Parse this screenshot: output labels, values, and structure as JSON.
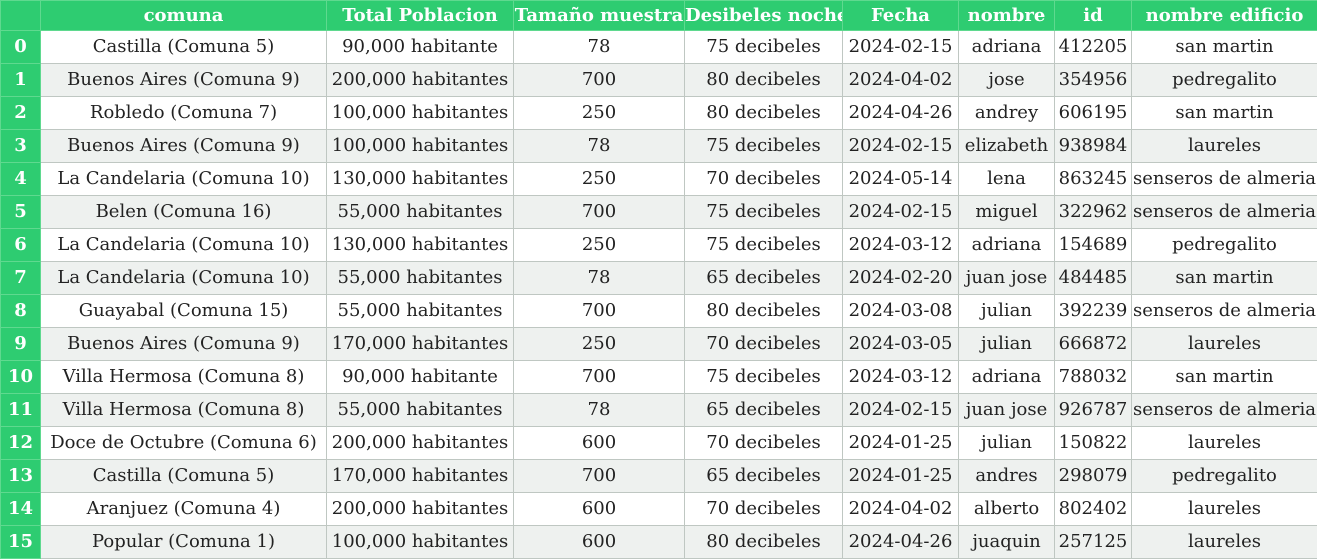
{
  "table": {
    "index_header": "",
    "columns": [
      "comuna",
      "Total Poblacion",
      "Tamaño muestra",
      "Desibeles noche",
      "Fecha",
      "nombre",
      "id",
      "nombre edificio"
    ],
    "rows": [
      {
        "index": "0",
        "cells": [
          "Castilla (Comuna 5)",
          "90,000 habitante",
          "78",
          "75 decibeles",
          "2024-02-15",
          "adriana",
          "412205",
          "san martin"
        ]
      },
      {
        "index": "1",
        "cells": [
          "Buenos Aires (Comuna 9)",
          "200,000 habitantes",
          "700",
          "80 decibeles",
          "2024-04-02",
          "jose",
          "354956",
          "pedregalito"
        ]
      },
      {
        "index": "2",
        "cells": [
          "Robledo (Comuna 7)",
          "100,000 habitantes",
          "250",
          "80 decibeles",
          "2024-04-26",
          "andrey",
          "606195",
          "san martin"
        ]
      },
      {
        "index": "3",
        "cells": [
          "Buenos Aires (Comuna 9)",
          "100,000 habitantes",
          "78",
          "75 decibeles",
          "2024-02-15",
          "elizabeth",
          "938984",
          "laureles"
        ]
      },
      {
        "index": "4",
        "cells": [
          "La Candelaria (Comuna 10)",
          "130,000 habitantes",
          "250",
          "70 decibeles",
          "2024-05-14",
          "lena",
          "863245",
          "senseros de almeria"
        ]
      },
      {
        "index": "5",
        "cells": [
          "Belen (Comuna 16)",
          "55,000 habitantes",
          "700",
          "75 decibeles",
          "2024-02-15",
          "miguel",
          "322962",
          "senseros de almeria"
        ]
      },
      {
        "index": "6",
        "cells": [
          "La Candelaria (Comuna 10)",
          "130,000 habitantes",
          "250",
          "75 decibeles",
          "2024-03-12",
          "adriana",
          "154689",
          "pedregalito"
        ]
      },
      {
        "index": "7",
        "cells": [
          "La Candelaria (Comuna 10)",
          "55,000 habitantes",
          "78",
          "65 decibeles",
          "2024-02-20",
          "juan jose",
          "484485",
          "san martin"
        ]
      },
      {
        "index": "8",
        "cells": [
          "Guayabal (Comuna 15)",
          "55,000 habitantes",
          "700",
          "80 decibeles",
          "2024-03-08",
          "julian",
          "392239",
          "senseros de almeria"
        ]
      },
      {
        "index": "9",
        "cells": [
          "Buenos Aires (Comuna 9)",
          "170,000 habitantes",
          "250",
          "70 decibeles",
          "2024-03-05",
          "julian",
          "666872",
          "laureles"
        ]
      },
      {
        "index": "10",
        "cells": [
          "Villa Hermosa (Comuna 8)",
          "90,000 habitante",
          "700",
          "75 decibeles",
          "2024-03-12",
          "adriana",
          "788032",
          "san martin"
        ]
      },
      {
        "index": "11",
        "cells": [
          "Villa Hermosa (Comuna 8)",
          "55,000 habitantes",
          "78",
          "65 decibeles",
          "2024-02-15",
          "juan jose",
          "926787",
          "senseros de almeria"
        ]
      },
      {
        "index": "12",
        "cells": [
          "Doce de Octubre (Comuna 6)",
          "200,000 habitantes",
          "600",
          "70 decibeles",
          "2024-01-25",
          "julian",
          "150822",
          "laureles"
        ]
      },
      {
        "index": "13",
        "cells": [
          "Castilla (Comuna 5)",
          "170,000 habitantes",
          "700",
          "65 decibeles",
          "2024-01-25",
          "andres",
          "298079",
          "pedregalito"
        ]
      },
      {
        "index": "14",
        "cells": [
          "Aranjuez (Comuna 4)",
          "200,000 habitantes",
          "600",
          "70 decibeles",
          "2024-04-02",
          "alberto",
          "802402",
          "laureles"
        ]
      },
      {
        "index": "15",
        "cells": [
          "Popular (Comuna 1)",
          "100,000 habitantes",
          "600",
          "80 decibeles",
          "2024-04-26",
          "juaquin",
          "257125",
          "laureles"
        ]
      }
    ]
  },
  "colors": {
    "header_bg": "#2ecc71",
    "header_text": "#ffffff",
    "row_alt_bg": "#eef1ef",
    "grid_line": "#bfc7c2"
  }
}
